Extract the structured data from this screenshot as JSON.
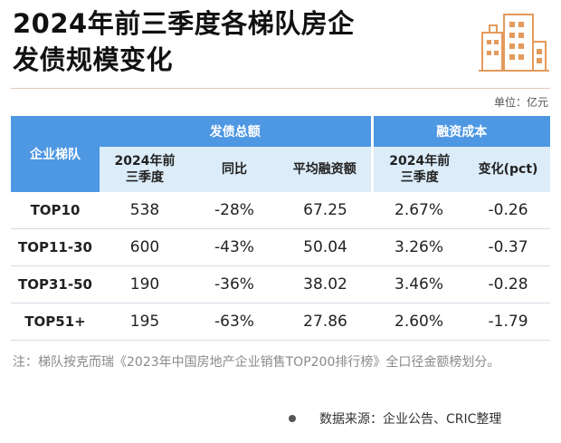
{
  "title_line1": "2024年前三季度各梯队房企",
  "title_line2": "发债规模变化",
  "unit": "单位：亿元",
  "table": {
    "tier_header": "企业梯队",
    "group_issuance": "发债总额",
    "group_cost": "融资成本",
    "sub_headers": [
      "2024年前三季度",
      "同比",
      "平均融资额",
      "2024年前三季度",
      "变化(pct)"
    ],
    "rows": [
      {
        "tier": "TOP10",
        "total": "538",
        "yoy": "-28%",
        "avg": "67.25",
        "cost": "2.67%",
        "change": "-0.26"
      },
      {
        "tier": "TOP11-30",
        "total": "600",
        "yoy": "-43%",
        "avg": "50.04",
        "cost": "3.26%",
        "change": "-0.37"
      },
      {
        "tier": "TOP31-50",
        "total": "190",
        "yoy": "-36%",
        "avg": "38.02",
        "cost": "3.46%",
        "change": "-0.28"
      },
      {
        "tier": "TOP51+",
        "total": "195",
        "yoy": "-63%",
        "avg": "27.86",
        "cost": "2.60%",
        "change": "-1.79"
      }
    ]
  },
  "note": "注：梯队按克而瑞《2023年中国房地产企业销售TOP200排行榜》全口径金额榜划分。",
  "source": "数据来源：企业公告、CRIC整理",
  "colors": {
    "header_blue": "#4d97e3",
    "subheader_blue": "#dcecf8",
    "logo_orange": "#e39a5c"
  }
}
